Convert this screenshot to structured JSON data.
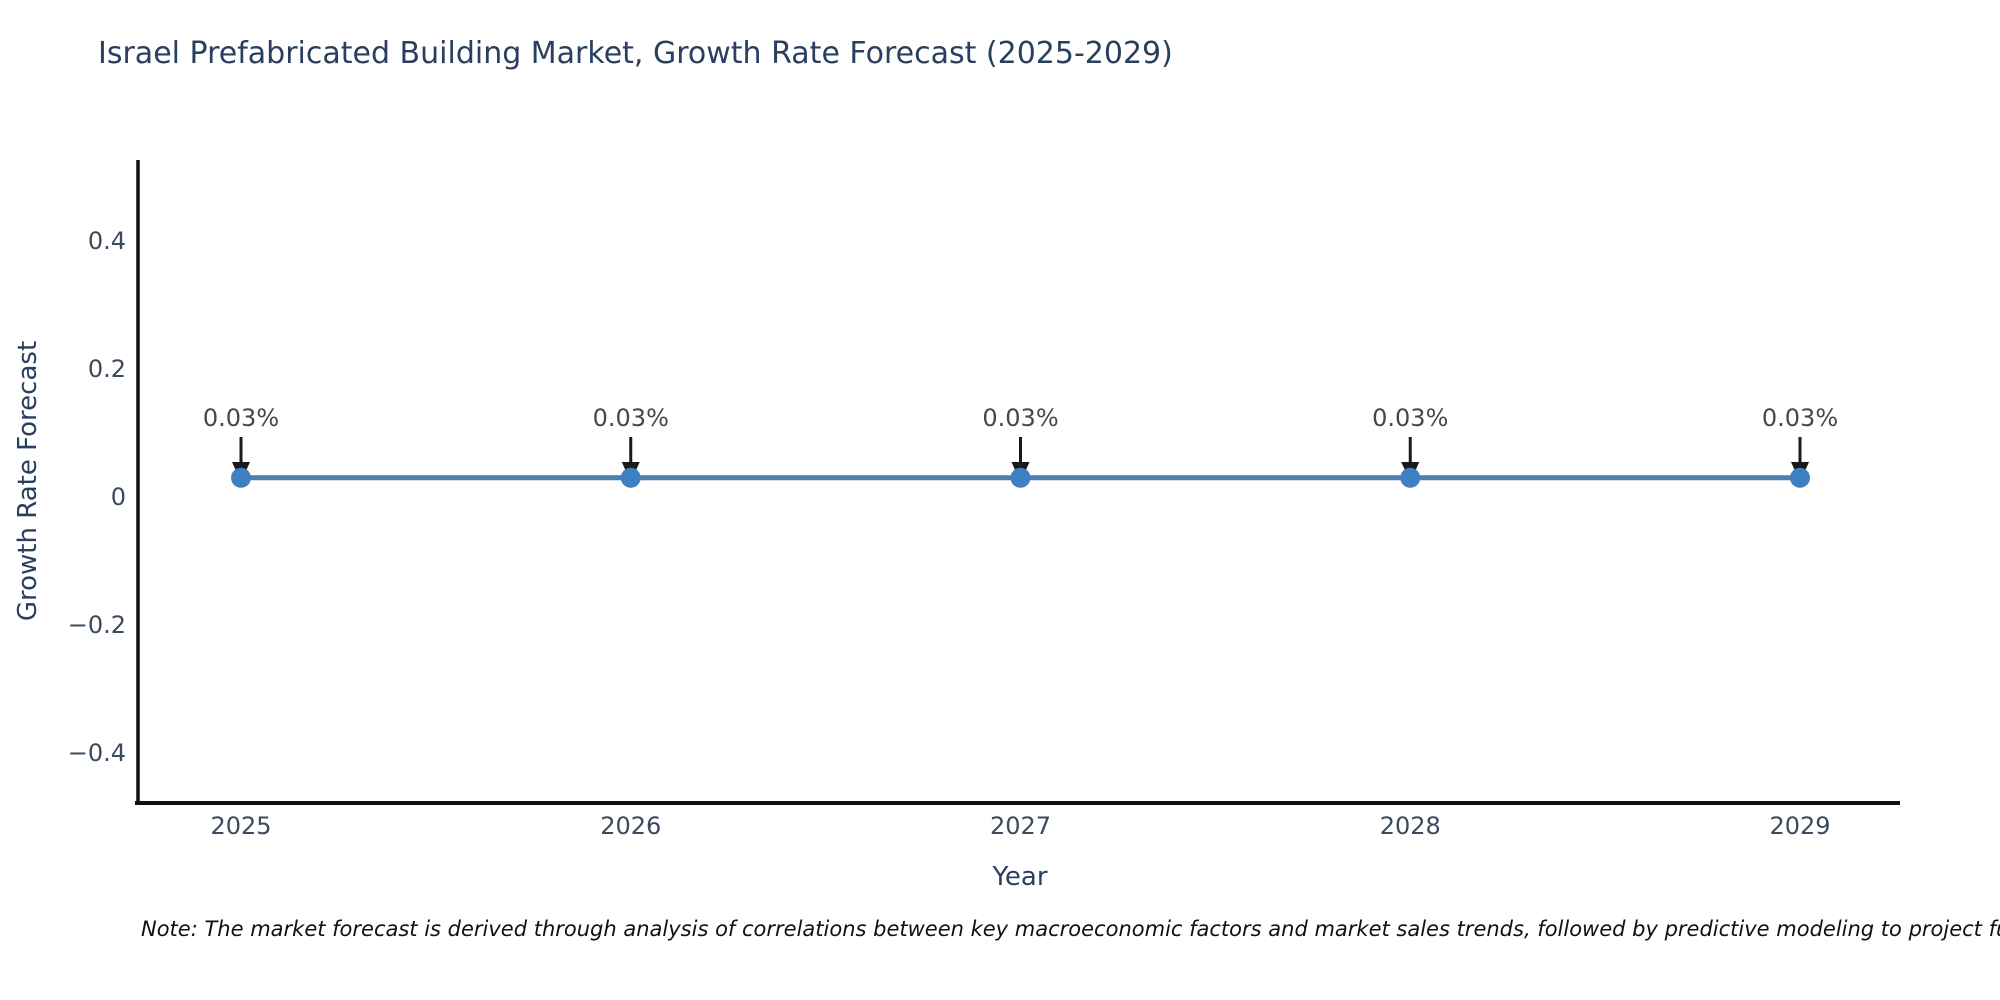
{
  "title": "Israel Prefabricated Building Market, Growth Rate Forecast (2025-2029)",
  "note": "Note: The market forecast is derived through analysis of correlations between key macroeconomic factors and market sales trends, followed by predictive modeling to project future sales",
  "chart_data": {
    "type": "line",
    "title": "Israel Prefabricated Building Market, Growth Rate Forecast (2025-2029)",
    "xlabel": "Year",
    "ylabel": "Growth Rate Forecast",
    "x": [
      2025,
      2026,
      2027,
      2028,
      2029
    ],
    "series": [
      {
        "name": "Growth Rate Forecast",
        "values": [
          0.03,
          0.03,
          0.03,
          0.03,
          0.03
        ]
      }
    ],
    "point_labels": [
      "0.03%",
      "0.03%",
      "0.03%",
      "0.03%",
      "0.03%"
    ],
    "x_tick_labels": [
      "2025",
      "2026",
      "2027",
      "2028",
      "2029"
    ],
    "y_ticks": [
      0.4,
      0.2,
      0,
      -0.2,
      -0.4
    ],
    "y_tick_labels": [
      "0.4",
      "0.2",
      "0",
      "−0.2",
      "−0.4"
    ],
    "ylim": [
      -0.48,
      0.53
    ],
    "grid": false,
    "legend_position": "none",
    "colors": {
      "line": "#4c7fa9",
      "marker": "#3e80c2",
      "axis": "#111111",
      "arrow": "#1a1a1a",
      "annotation_text": "#474747",
      "title_text": "#2a3f5f",
      "tick_text": "#3b4a5e"
    }
  }
}
